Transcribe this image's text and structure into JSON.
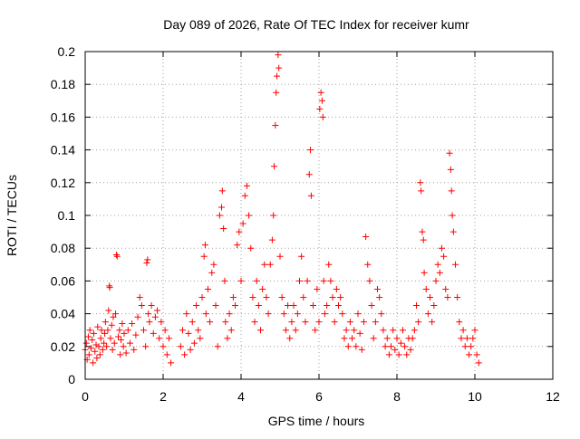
{
  "chart_data": {
    "type": "scatter",
    "title": "Day 089 of 2026, Rate Of TEC Index for receiver kumr",
    "xlabel": "GPS time / hours",
    "ylabel": "ROTI / TECUs",
    "xlim": [
      0,
      12
    ],
    "ylim": [
      0,
      0.2
    ],
    "x_ticks": [
      "0",
      "2",
      "4",
      "6",
      "8",
      "10",
      "12"
    ],
    "y_ticks": [
      "0",
      "0.02",
      "0.04",
      "0.06",
      "0.08",
      "0.1",
      "0.12",
      "0.14",
      "0.16",
      "0.18",
      "0.2"
    ],
    "grid": true,
    "marker": "+",
    "color": "#ff0000",
    "series": [
      {
        "points": [
          [
            0.0,
            0.018
          ],
          [
            0.03,
            0.022
          ],
          [
            0.05,
            0.012
          ],
          [
            0.08,
            0.026
          ],
          [
            0.1,
            0.015
          ],
          [
            0.12,
            0.03
          ],
          [
            0.15,
            0.019
          ],
          [
            0.18,
            0.024
          ],
          [
            0.2,
            0.01
          ],
          [
            0.22,
            0.028
          ],
          [
            0.25,
            0.017
          ],
          [
            0.28,
            0.021
          ],
          [
            0.3,
            0.013
          ],
          [
            0.32,
            0.032
          ],
          [
            0.35,
            0.02
          ],
          [
            0.38,
            0.015
          ],
          [
            0.4,
            0.025
          ],
          [
            0.42,
            0.03
          ],
          [
            0.45,
            0.018
          ],
          [
            0.48,
            0.022
          ],
          [
            0.5,
            0.028
          ],
          [
            0.52,
            0.035
          ],
          [
            0.55,
            0.02
          ],
          [
            0.58,
            0.03
          ],
          [
            0.6,
            0.042
          ],
          [
            0.62,
            0.057
          ],
          [
            0.63,
            0.056
          ],
          [
            0.65,
            0.025
          ],
          [
            0.68,
            0.033
          ],
          [
            0.7,
            0.018
          ],
          [
            0.72,
            0.038
          ],
          [
            0.75,
            0.022
          ],
          [
            0.78,
            0.04
          ],
          [
            0.8,
            0.076
          ],
          [
            0.82,
            0.075
          ],
          [
            0.85,
            0.026
          ],
          [
            0.88,
            0.03
          ],
          [
            0.9,
            0.015
          ],
          [
            0.92,
            0.024
          ],
          [
            0.95,
            0.034
          ],
          [
            0.98,
            0.02
          ],
          [
            1.0,
            0.028
          ],
          [
            1.05,
            0.016
          ],
          [
            1.1,
            0.03
          ],
          [
            1.15,
            0.022
          ],
          [
            1.2,
            0.034
          ],
          [
            1.25,
            0.018
          ],
          [
            1.3,
            0.027
          ],
          [
            1.35,
            0.038
          ],
          [
            1.4,
            0.05
          ],
          [
            1.45,
            0.045
          ],
          [
            1.5,
            0.03
          ],
          [
            1.55,
            0.02
          ],
          [
            1.58,
            0.071
          ],
          [
            1.6,
            0.073
          ],
          [
            1.62,
            0.04
          ],
          [
            1.65,
            0.035
          ],
          [
            1.7,
            0.045
          ],
          [
            1.75,
            0.028
          ],
          [
            1.8,
            0.038
          ],
          [
            1.85,
            0.042
          ],
          [
            1.9,
            0.025
          ],
          [
            1.95,
            0.035
          ],
          [
            2.0,
            0.02
          ],
          [
            2.05,
            0.03
          ],
          [
            2.1,
            0.015
          ],
          [
            2.15,
            0.025
          ],
          [
            2.2,
            0.01
          ],
          [
            2.45,
            0.02
          ],
          [
            2.5,
            0.03
          ],
          [
            2.55,
            0.015
          ],
          [
            2.6,
            0.04
          ],
          [
            2.65,
            0.028
          ],
          [
            2.7,
            0.018
          ],
          [
            2.75,
            0.035
          ],
          [
            2.8,
            0.022
          ],
          [
            2.85,
            0.045
          ],
          [
            2.9,
            0.03
          ],
          [
            2.95,
            0.025
          ],
          [
            3.0,
            0.05
          ],
          [
            3.05,
            0.075
          ],
          [
            3.08,
            0.082
          ],
          [
            3.1,
            0.04
          ],
          [
            3.15,
            0.055
          ],
          [
            3.2,
            0.035
          ],
          [
            3.25,
            0.065
          ],
          [
            3.3,
            0.07
          ],
          [
            3.35,
            0.045
          ],
          [
            3.4,
            0.02
          ],
          [
            3.45,
            0.1
          ],
          [
            3.5,
            0.105
          ],
          [
            3.52,
            0.115
          ],
          [
            3.55,
            0.092
          ],
          [
            3.58,
            0.06
          ],
          [
            3.6,
            0.035
          ],
          [
            3.65,
            0.025
          ],
          [
            3.7,
            0.04
          ],
          [
            3.75,
            0.03
          ],
          [
            3.8,
            0.05
          ],
          [
            3.85,
            0.045
          ],
          [
            3.9,
            0.082
          ],
          [
            3.95,
            0.09
          ],
          [
            4.0,
            0.06
          ],
          [
            4.05,
            0.095
          ],
          [
            4.1,
            0.112
          ],
          [
            4.15,
            0.118
          ],
          [
            4.2,
            0.1
          ],
          [
            4.25,
            0.08
          ],
          [
            4.3,
            0.05
          ],
          [
            4.35,
            0.035
          ],
          [
            4.4,
            0.06
          ],
          [
            4.45,
            0.045
          ],
          [
            4.5,
            0.03
          ],
          [
            4.55,
            0.055
          ],
          [
            4.6,
            0.07
          ],
          [
            4.65,
            0.05
          ],
          [
            4.7,
            0.04
          ],
          [
            4.75,
            0.07
          ],
          [
            4.8,
            0.085
          ],
          [
            4.83,
            0.1
          ],
          [
            4.85,
            0.13
          ],
          [
            4.88,
            0.155
          ],
          [
            4.9,
            0.175
          ],
          [
            4.92,
            0.185
          ],
          [
            4.95,
            0.198
          ],
          [
            4.97,
            0.19
          ],
          [
            5.0,
            0.075
          ],
          [
            5.05,
            0.05
          ],
          [
            5.1,
            0.04
          ],
          [
            5.15,
            0.03
          ],
          [
            5.2,
            0.045
          ],
          [
            5.25,
            0.025
          ],
          [
            5.3,
            0.035
          ],
          [
            5.35,
            0.045
          ],
          [
            5.4,
            0.03
          ],
          [
            5.45,
            0.04
          ],
          [
            5.5,
            0.06
          ],
          [
            5.55,
            0.075
          ],
          [
            5.6,
            0.05
          ],
          [
            5.65,
            0.035
          ],
          [
            5.7,
            0.06
          ],
          [
            5.75,
            0.125
          ],
          [
            5.78,
            0.14
          ],
          [
            5.8,
            0.112
          ],
          [
            5.85,
            0.045
          ],
          [
            5.9,
            0.03
          ],
          [
            5.95,
            0.055
          ],
          [
            6.0,
            0.035
          ],
          [
            6.02,
            0.165
          ],
          [
            6.05,
            0.175
          ],
          [
            6.08,
            0.17
          ],
          [
            6.1,
            0.16
          ],
          [
            6.12,
            0.06
          ],
          [
            6.15,
            0.04
          ],
          [
            6.2,
            0.045
          ],
          [
            6.25,
            0.07
          ],
          [
            6.3,
            0.06
          ],
          [
            6.35,
            0.05
          ],
          [
            6.4,
            0.035
          ],
          [
            6.45,
            0.055
          ],
          [
            6.5,
            0.045
          ],
          [
            6.55,
            0.05
          ],
          [
            6.6,
            0.04
          ],
          [
            6.65,
            0.025
          ],
          [
            6.7,
            0.03
          ],
          [
            6.75,
            0.02
          ],
          [
            6.8,
            0.035
          ],
          [
            6.85,
            0.025
          ],
          [
            6.9,
            0.03
          ],
          [
            6.95,
            0.02
          ],
          [
            7.0,
            0.04
          ],
          [
            7.05,
            0.028
          ],
          [
            7.1,
            0.018
          ],
          [
            7.15,
            0.035
          ],
          [
            7.2,
            0.087
          ],
          [
            7.25,
            0.07
          ],
          [
            7.3,
            0.06
          ],
          [
            7.35,
            0.045
          ],
          [
            7.4,
            0.025
          ],
          [
            7.45,
            0.035
          ],
          [
            7.5,
            0.055
          ],
          [
            7.55,
            0.05
          ],
          [
            7.6,
            0.04
          ],
          [
            7.65,
            0.03
          ],
          [
            7.7,
            0.02
          ],
          [
            7.75,
            0.025
          ],
          [
            7.8,
            0.015
          ],
          [
            7.85,
            0.02
          ],
          [
            7.9,
            0.03
          ],
          [
            7.95,
            0.018
          ],
          [
            8.0,
            0.025
          ],
          [
            8.05,
            0.015
          ],
          [
            8.1,
            0.022
          ],
          [
            8.15,
            0.03
          ],
          [
            8.2,
            0.02
          ],
          [
            8.25,
            0.015
          ],
          [
            8.3,
            0.025
          ],
          [
            8.35,
            0.018
          ],
          [
            8.4,
            0.025
          ],
          [
            8.45,
            0.03
          ],
          [
            8.5,
            0.045
          ],
          [
            8.55,
            0.035
          ],
          [
            8.6,
            0.12
          ],
          [
            8.62,
            0.115
          ],
          [
            8.65,
            0.09
          ],
          [
            8.68,
            0.085
          ],
          [
            8.7,
            0.065
          ],
          [
            8.75,
            0.055
          ],
          [
            8.8,
            0.04
          ],
          [
            8.85,
            0.05
          ],
          [
            8.9,
            0.035
          ],
          [
            8.95,
            0.045
          ],
          [
            9.0,
            0.06
          ],
          [
            9.05,
            0.07
          ],
          [
            9.1,
            0.065
          ],
          [
            9.15,
            0.08
          ],
          [
            9.2,
            0.075
          ],
          [
            9.25,
            0.055
          ],
          [
            9.3,
            0.05
          ],
          [
            9.35,
            0.138
          ],
          [
            9.38,
            0.128
          ],
          [
            9.4,
            0.115
          ],
          [
            9.42,
            0.1
          ],
          [
            9.45,
            0.09
          ],
          [
            9.5,
            0.07
          ],
          [
            9.55,
            0.05
          ],
          [
            9.6,
            0.035
          ],
          [
            9.65,
            0.025
          ],
          [
            9.7,
            0.03
          ],
          [
            9.75,
            0.02
          ],
          [
            9.8,
            0.025
          ],
          [
            9.85,
            0.015
          ],
          [
            9.9,
            0.02
          ],
          [
            9.95,
            0.025
          ],
          [
            10.0,
            0.03
          ],
          [
            10.05,
            0.015
          ],
          [
            10.1,
            0.01
          ]
        ]
      }
    ]
  }
}
